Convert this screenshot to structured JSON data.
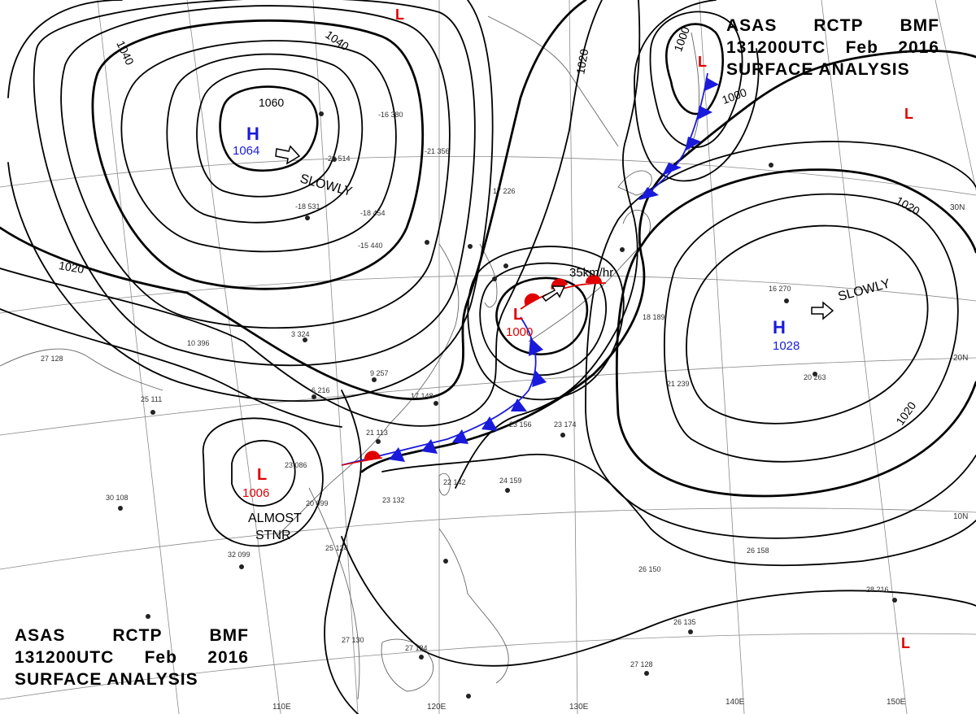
{
  "header": {
    "agency": "ASAS",
    "center": "RCTP",
    "code": "BMF",
    "datetime": "131200UTC",
    "month": "Feb",
    "year": "2016",
    "product": "SURFACE ANALYSIS"
  },
  "colors": {
    "high": "#1a1adc",
    "low": "#e00000",
    "cold_front": "#1a1adc",
    "warm_front": "#e00000",
    "isobar": "#000000",
    "coast": "#555555",
    "grid": "#888888"
  },
  "pressure_systems": [
    {
      "type": "H",
      "value": "1064",
      "motion": "SLOWLY"
    },
    {
      "type": "H",
      "value": "1028",
      "motion": "SLOWLY"
    },
    {
      "type": "L",
      "value": "1000",
      "motion": "35km/hr"
    },
    {
      "type": "L",
      "value": "1006",
      "motion_line1": "ALMOST",
      "motion_line2": "STNR"
    },
    {
      "type": "L"
    },
    {
      "type": "L"
    },
    {
      "type": "L"
    },
    {
      "type": "L"
    }
  ],
  "isobar_labels": [
    "1060",
    "1040",
    "1040",
    "1020",
    "1020",
    "1000",
    "1000",
    "1020",
    "1020"
  ],
  "lat_labels": [
    "30N",
    "20N",
    "10N"
  ],
  "lon_labels": [
    "110E",
    "120E",
    "130E",
    "140E",
    "150E"
  ],
  "stations": [
    {
      "t": "-16",
      "p": "380"
    },
    {
      "t": "-20",
      "p": "514"
    },
    {
      "t": "-18",
      "p": "531"
    },
    {
      "t": "-18",
      "p": "454"
    },
    {
      "t": "-15",
      "p": "440"
    },
    {
      "t": "-21",
      "p": "356"
    },
    {
      "t": "17",
      "p": "226"
    },
    {
      "t": "3",
      "p": "324"
    },
    {
      "t": "9",
      "p": "257"
    },
    {
      "t": "6",
      "p": "216"
    },
    {
      "t": "17",
      "p": "148"
    },
    {
      "t": "21",
      "p": "113"
    },
    {
      "t": "23",
      "p": "086"
    },
    {
      "t": "20",
      "p": "099"
    },
    {
      "t": "23",
      "p": "132"
    },
    {
      "t": "22",
      "p": "142"
    },
    {
      "t": "24",
      "p": "159"
    },
    {
      "t": "23",
      "p": "156"
    },
    {
      "t": "23",
      "p": "174"
    },
    {
      "t": "25",
      "p": "124"
    },
    {
      "t": "32",
      "p": "099"
    },
    {
      "t": "30",
      "p": "108"
    },
    {
      "t": "25",
      "p": "111"
    },
    {
      "t": "27",
      "p": "128"
    },
    {
      "t": "16",
      "p": "270"
    },
    {
      "t": "20",
      "p": "263"
    },
    {
      "t": "21",
      "p": "239"
    },
    {
      "t": "26",
      "p": "150"
    },
    {
      "t": "26",
      "p": "158"
    },
    {
      "t": "28",
      "p": "216"
    },
    {
      "t": "26",
      "p": "135"
    },
    {
      "t": "27",
      "p": "128"
    },
    {
      "t": "18",
      "p": "189"
    },
    {
      "t": "10",
      "p": "396"
    },
    {
      "t": "27",
      "p": "124"
    },
    {
      "t": "27",
      "p": "130"
    }
  ]
}
